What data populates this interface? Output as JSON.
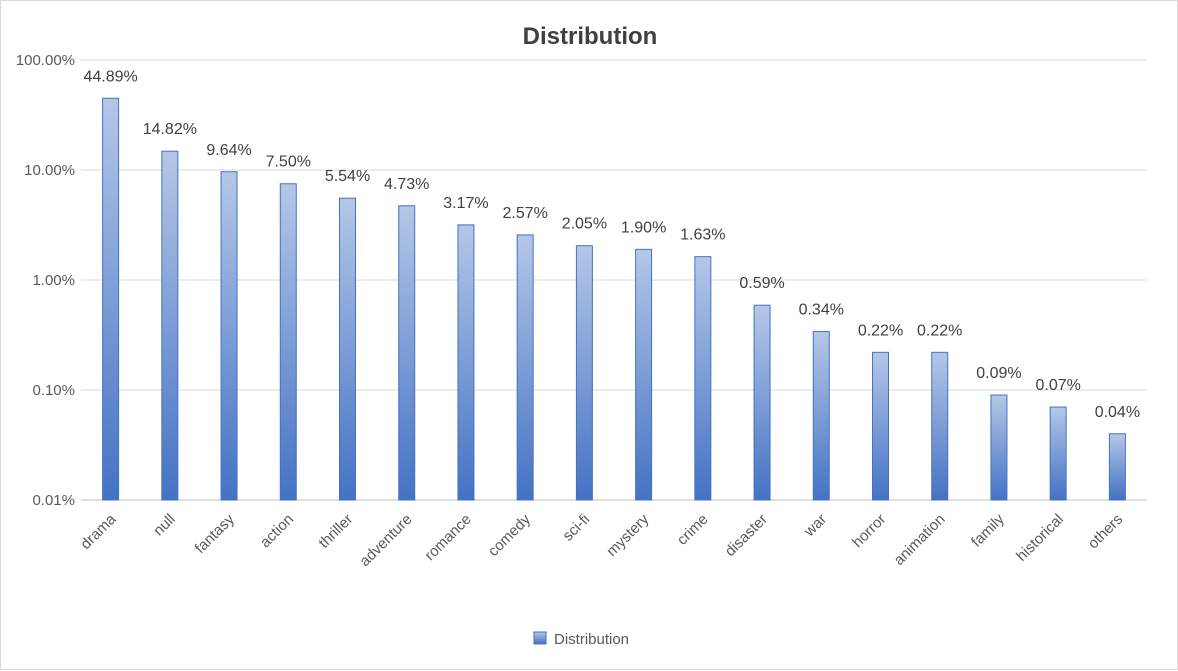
{
  "chart_data": {
    "type": "bar",
    "title": "Distribution",
    "yscale": "log",
    "ylim": [
      0.01,
      100
    ],
    "yticks": [
      "0.01%",
      "0.10%",
      "1.00%",
      "10.00%",
      "100.00%"
    ],
    "grid": true,
    "legend_position": "bottom",
    "categories": [
      "drama",
      "null",
      "fantasy",
      "action",
      "thriller",
      "adventure",
      "romance",
      "comedy",
      "sci-fi",
      "mystery",
      "crime",
      "disaster",
      "war",
      "horror",
      "animation",
      "family",
      "historical",
      "others"
    ],
    "series": [
      {
        "name": "Distribution",
        "values": [
          44.89,
          14.82,
          9.64,
          7.5,
          5.54,
          4.73,
          3.17,
          2.57,
          2.05,
          1.9,
          1.63,
          0.59,
          0.34,
          0.22,
          0.22,
          0.09,
          0.07,
          0.04
        ],
        "labels": [
          "44.89%",
          "14.82%",
          "9.64%",
          "7.50%",
          "5.54%",
          "4.73%",
          "3.17%",
          "2.57%",
          "2.05%",
          "1.90%",
          "1.63%",
          "0.59%",
          "0.34%",
          "0.22%",
          "0.22%",
          "0.09%",
          "0.07%",
          "0.04%"
        ]
      }
    ],
    "colors": {
      "bar_top": "#b4c7e7",
      "bar_bottom": "#4472c4",
      "bar_border": "#4472c4",
      "grid": "#d9d9d9"
    }
  }
}
